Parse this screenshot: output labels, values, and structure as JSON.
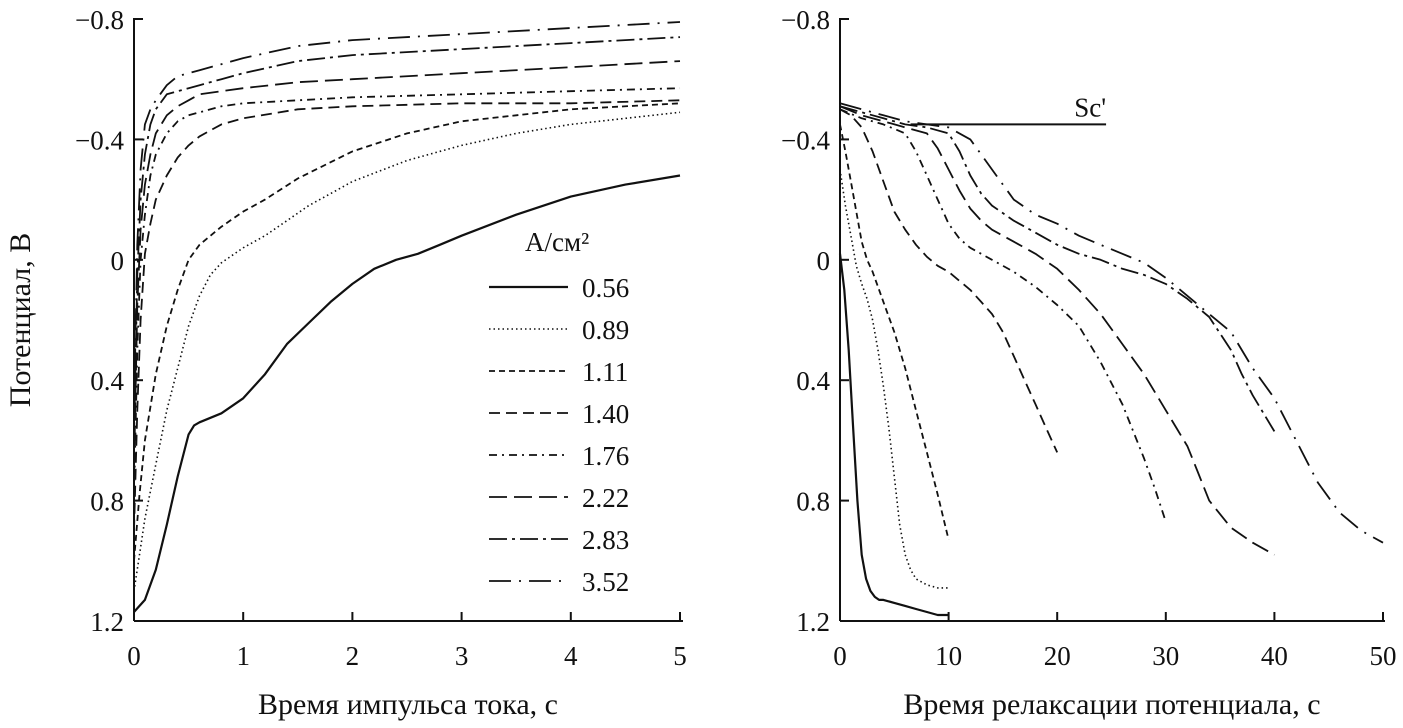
{
  "chart_data": [
    {
      "type": "line",
      "panel": "left",
      "title": "",
      "xlabel": "Время импульса тока, с",
      "ylabel": "Потенциал, В",
      "xlim": [
        0,
        5
      ],
      "ylim": [
        -0.8,
        1.2
      ],
      "y_inverted": true,
      "x_ticks": [
        0,
        1,
        2,
        3,
        4,
        5
      ],
      "x_tick_labels": [
        "0",
        "1",
        "2",
        "3",
        "4",
        "5"
      ],
      "y_ticks": [
        -0.8,
        -0.4,
        0,
        0.4,
        0.8,
        1.2
      ],
      "y_tick_labels": [
        "−0.8",
        "−0.4",
        "0",
        "0.4",
        "0.8",
        "1.2"
      ],
      "legend_title": "A/см²",
      "legend_position": "right-middle",
      "series": [
        {
          "name": "0.56",
          "dash": "solid",
          "x": [
            0,
            0.1,
            0.2,
            0.3,
            0.4,
            0.5,
            0.55,
            0.6,
            0.8,
            1.0,
            1.2,
            1.4,
            1.6,
            1.8,
            2.0,
            2.2,
            2.4,
            2.6,
            2.8,
            3.0,
            3.5,
            4.0,
            4.5,
            5.0
          ],
          "y": [
            1.17,
            1.13,
            1.03,
            0.88,
            0.72,
            0.58,
            0.55,
            0.54,
            0.51,
            0.46,
            0.38,
            0.28,
            0.21,
            0.14,
            0.08,
            0.03,
            0.0,
            -0.02,
            -0.05,
            -0.08,
            -0.15,
            -0.21,
            -0.25,
            -0.28
          ]
        },
        {
          "name": "0.89",
          "dash": "dot",
          "x": [
            0,
            0.05,
            0.1,
            0.2,
            0.3,
            0.4,
            0.5,
            0.6,
            0.7,
            0.8,
            1.0,
            1.2,
            1.4,
            1.6,
            1.8,
            2.0,
            2.5,
            3.0,
            3.5,
            4.0,
            5.0
          ],
          "y": [
            1.1,
            0.98,
            0.86,
            0.68,
            0.5,
            0.36,
            0.22,
            0.12,
            0.05,
            0.01,
            -0.04,
            -0.08,
            -0.13,
            -0.18,
            -0.22,
            -0.26,
            -0.33,
            -0.38,
            -0.42,
            -0.45,
            -0.49
          ]
        },
        {
          "name": "1.11",
          "dash": "short-dash",
          "x": [
            0,
            0.05,
            0.1,
            0.2,
            0.3,
            0.4,
            0.5,
            0.6,
            0.8,
            1.0,
            1.2,
            1.5,
            2.0,
            2.5,
            3.0,
            3.5,
            4.0,
            5.0
          ],
          "y": [
            1.0,
            0.78,
            0.6,
            0.38,
            0.22,
            0.1,
            0.0,
            -0.05,
            -0.11,
            -0.16,
            -0.2,
            -0.27,
            -0.36,
            -0.42,
            -0.46,
            -0.48,
            -0.5,
            -0.52
          ]
        },
        {
          "name": "1.40",
          "dash": "dash",
          "x": [
            0,
            0.03,
            0.06,
            0.1,
            0.15,
            0.2,
            0.3,
            0.4,
            0.5,
            0.6,
            0.8,
            1.0,
            1.5,
            2.0,
            3.0,
            4.0,
            5.0
          ],
          "y": [
            0.9,
            0.5,
            0.2,
            -0.02,
            -0.12,
            -0.2,
            -0.28,
            -0.34,
            -0.38,
            -0.41,
            -0.45,
            -0.47,
            -0.5,
            -0.51,
            -0.52,
            -0.52,
            -0.53
          ]
        },
        {
          "name": "1.76",
          "dash": "dash-dot-short",
          "x": [
            0,
            0.03,
            0.06,
            0.1,
            0.15,
            0.2,
            0.3,
            0.4,
            0.5,
            0.6,
            0.8,
            1.0,
            1.5,
            2.0,
            3.0,
            4.0,
            5.0
          ],
          "y": [
            0.8,
            0.3,
            0.0,
            -0.15,
            -0.28,
            -0.35,
            -0.42,
            -0.46,
            -0.48,
            -0.49,
            -0.51,
            -0.52,
            -0.53,
            -0.54,
            -0.55,
            -0.56,
            -0.57
          ]
        },
        {
          "name": "2.22",
          "dash": "long-dash",
          "x": [
            0,
            0.03,
            0.06,
            0.1,
            0.15,
            0.2,
            0.3,
            0.4,
            0.5,
            0.6,
            0.8,
            1.0,
            1.5,
            2.0,
            3.0,
            4.0,
            5.0
          ],
          "y": [
            0.7,
            0.15,
            -0.1,
            -0.25,
            -0.35,
            -0.42,
            -0.48,
            -0.51,
            -0.53,
            -0.55,
            -0.56,
            -0.57,
            -0.59,
            -0.6,
            -0.62,
            -0.64,
            -0.66
          ]
        },
        {
          "name": "2.83",
          "dash": "long-dash-dot",
          "x": [
            0,
            0.03,
            0.06,
            0.1,
            0.15,
            0.2,
            0.3,
            0.4,
            0.5,
            0.6,
            0.8,
            1.0,
            1.5,
            2.0,
            3.0,
            4.0,
            5.0
          ],
          "y": [
            0.6,
            0.05,
            -0.2,
            -0.35,
            -0.45,
            -0.5,
            -0.55,
            -0.56,
            -0.57,
            -0.58,
            -0.6,
            -0.62,
            -0.66,
            -0.68,
            -0.7,
            -0.72,
            -0.74
          ]
        },
        {
          "name": "3.52",
          "dash": "long-dash-short-dot",
          "x": [
            0,
            0.03,
            0.06,
            0.1,
            0.15,
            0.2,
            0.3,
            0.4,
            0.5,
            0.6,
            0.8,
            1.0,
            1.5,
            2.0,
            3.0,
            4.0,
            5.0
          ],
          "y": [
            0.5,
            -0.05,
            -0.3,
            -0.45,
            -0.5,
            -0.53,
            -0.58,
            -0.61,
            -0.62,
            -0.63,
            -0.65,
            -0.67,
            -0.71,
            -0.73,
            -0.75,
            -0.77,
            -0.79
          ]
        }
      ]
    },
    {
      "type": "line",
      "panel": "right",
      "title": "",
      "xlabel": "Время релаксации потенциала, с",
      "ylabel": "",
      "xlim": [
        0,
        50
      ],
      "ylim": [
        -0.8,
        1.2
      ],
      "y_inverted": true,
      "x_ticks": [
        0,
        10,
        20,
        30,
        40,
        50
      ],
      "x_tick_labels": [
        "0",
        "10",
        "20",
        "30",
        "40",
        "50"
      ],
      "y_ticks": [
        -0.8,
        -0.4,
        0,
        0.4,
        0.8,
        1.2
      ],
      "y_tick_labels": [
        "−0.8",
        "−0.4",
        "0",
        "0.4",
        "0.8",
        "1.2"
      ],
      "annotation": {
        "text": "Sc'",
        "x_start": 6.5,
        "x_end": 24.5,
        "y": -0.45
      },
      "series": [
        {
          "name": "0.56",
          "dash": "solid",
          "x": [
            0,
            0.4,
            0.8,
            1.2,
            1.6,
            2.0,
            2.4,
            2.8,
            3.2,
            3.6,
            4.0,
            5.0,
            6.0,
            7.0,
            8.0,
            9.0,
            10.0
          ],
          "y": [
            -0.02,
            0.1,
            0.3,
            0.55,
            0.8,
            0.98,
            1.06,
            1.1,
            1.12,
            1.13,
            1.13,
            1.14,
            1.15,
            1.16,
            1.17,
            1.18,
            1.18
          ]
        },
        {
          "name": "0.89",
          "dash": "dot",
          "x": [
            0,
            0.5,
            1.0,
            1.5,
            2.0,
            2.5,
            3.0,
            3.5,
            4.0,
            4.5,
            5.0,
            5.5,
            6.0,
            6.5,
            7.0,
            8.0,
            9.0,
            10.0
          ],
          "y": [
            -0.3,
            -0.18,
            -0.08,
            0.02,
            0.08,
            0.13,
            0.2,
            0.3,
            0.42,
            0.56,
            0.72,
            0.88,
            0.98,
            1.03,
            1.06,
            1.08,
            1.09,
            1.09
          ]
        },
        {
          "name": "1.11",
          "dash": "short-dash",
          "x": [
            0,
            0.5,
            1.0,
            1.5,
            2.0,
            2.5,
            3.0,
            4.0,
            5.0,
            6.0,
            7.0,
            8.0,
            9.0,
            10.0
          ],
          "y": [
            -0.45,
            -0.36,
            -0.26,
            -0.16,
            -0.06,
            0.0,
            0.04,
            0.14,
            0.24,
            0.36,
            0.5,
            0.64,
            0.78,
            0.93
          ]
        },
        {
          "name": "1.40",
          "dash": "dash",
          "x": [
            0,
            1,
            2,
            3,
            4,
            5,
            6,
            7,
            8,
            9,
            10,
            11,
            12,
            13,
            14,
            15,
            16,
            17,
            18,
            19,
            20
          ],
          "y": [
            -0.5,
            -0.48,
            -0.44,
            -0.36,
            -0.26,
            -0.16,
            -0.1,
            -0.05,
            -0.01,
            0.02,
            0.04,
            0.07,
            0.1,
            0.14,
            0.18,
            0.24,
            0.32,
            0.4,
            0.48,
            0.56,
            0.64
          ]
        },
        {
          "name": "1.76",
          "dash": "dash-dot-short",
          "x": [
            0,
            2,
            4,
            6,
            7,
            8,
            9,
            10,
            11,
            12,
            14,
            16,
            18,
            20,
            22,
            24,
            26,
            28,
            29,
            30
          ],
          "y": [
            -0.5,
            -0.47,
            -0.45,
            -0.42,
            -0.36,
            -0.28,
            -0.2,
            -0.12,
            -0.07,
            -0.04,
            0.0,
            0.04,
            0.09,
            0.15,
            0.22,
            0.34,
            0.48,
            0.66,
            0.76,
            0.87
          ]
        },
        {
          "name": "2.22",
          "dash": "long-dash",
          "x": [
            0,
            2,
            4,
            6,
            8,
            9,
            10,
            11,
            12,
            13,
            14,
            16,
            18,
            20,
            22,
            24,
            26,
            28,
            30,
            31,
            32,
            33,
            34,
            36,
            38,
            40
          ],
          "y": [
            -0.51,
            -0.48,
            -0.46,
            -0.44,
            -0.42,
            -0.37,
            -0.3,
            -0.23,
            -0.17,
            -0.13,
            -0.1,
            -0.06,
            -0.02,
            0.03,
            0.1,
            0.18,
            0.28,
            0.38,
            0.5,
            0.56,
            0.62,
            0.71,
            0.8,
            0.89,
            0.94,
            0.98
          ]
        },
        {
          "name": "2.83",
          "dash": "long-dash-dot",
          "x": [
            0,
            2,
            4,
            6,
            8,
            10,
            11,
            12,
            13,
            14,
            16,
            18,
            20,
            22,
            24,
            26,
            28,
            30,
            32,
            34,
            36,
            37,
            38,
            39,
            40
          ],
          "y": [
            -0.51,
            -0.49,
            -0.47,
            -0.45,
            -0.44,
            -0.42,
            -0.36,
            -0.28,
            -0.22,
            -0.18,
            -0.13,
            -0.09,
            -0.05,
            -0.02,
            0.0,
            0.03,
            0.05,
            0.08,
            0.13,
            0.19,
            0.3,
            0.38,
            0.45,
            0.51,
            0.57
          ]
        },
        {
          "name": "3.52",
          "dash": "long-dash-short-dot",
          "x": [
            0,
            2,
            4,
            6,
            8,
            10,
            12,
            13,
            14,
            15,
            16,
            18,
            20,
            22,
            24,
            26,
            28,
            30,
            32,
            34,
            36,
            38,
            40,
            42,
            44,
            46,
            48,
            50
          ],
          "y": [
            -0.52,
            -0.5,
            -0.48,
            -0.46,
            -0.45,
            -0.44,
            -0.4,
            -0.35,
            -0.3,
            -0.25,
            -0.2,
            -0.15,
            -0.12,
            -0.08,
            -0.05,
            -0.02,
            0.01,
            0.06,
            0.12,
            0.18,
            0.24,
            0.36,
            0.46,
            0.6,
            0.74,
            0.84,
            0.9,
            0.94
          ]
        }
      ]
    }
  ]
}
